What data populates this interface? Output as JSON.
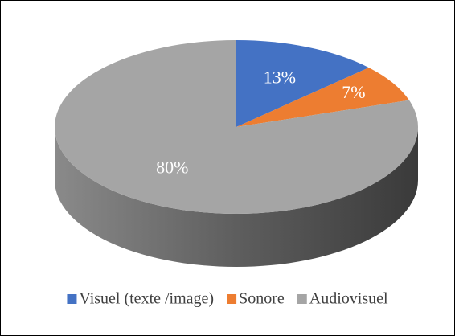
{
  "chart_data": {
    "type": "pie3d",
    "categories": [
      "Visuel (texte /image)",
      "Sonore",
      "Audiovisuel"
    ],
    "values": [
      13,
      7,
      80
    ],
    "value_labels": [
      "13%",
      "7%",
      "80%"
    ],
    "colors": [
      "#4472c4",
      "#ed7d31",
      "#a5a5a5"
    ],
    "legend": "bottom"
  }
}
